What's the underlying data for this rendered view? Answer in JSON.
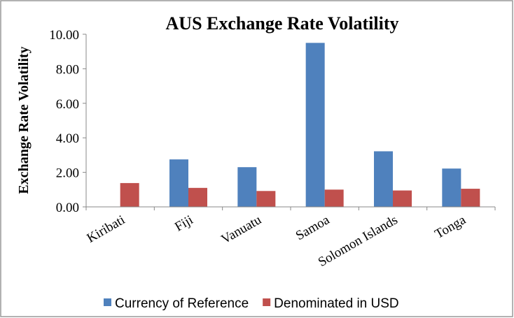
{
  "chart_data": {
    "type": "bar",
    "title": "AUS Exchange Rate Volatility",
    "y_label": "Exchange Rate Volatility",
    "categories": [
      "Kiribati",
      "Fiji",
      "Vanuatu",
      "Samoa",
      "Solomon Islands",
      "Tonga"
    ],
    "series": [
      {
        "name": "Currency of Reference",
        "color": "#4f81bd",
        "values": [
          null,
          2.75,
          2.3,
          9.5,
          3.22,
          2.22
        ]
      },
      {
        "name": "Denominated in USD",
        "color": "#c0504d",
        "values": [
          1.38,
          1.1,
          0.92,
          1.0,
          0.95,
          1.05
        ]
      }
    ],
    "ylim": [
      0,
      10
    ],
    "yticks": [
      {
        "value": 0,
        "label": "0.00"
      },
      {
        "value": 2,
        "label": "2.00"
      },
      {
        "value": 4,
        "label": "4.00"
      },
      {
        "value": 6,
        "label": "6.00"
      },
      {
        "value": 8,
        "label": "8.00"
      },
      {
        "value": 10,
        "label": "10.00"
      }
    ],
    "legend": "bottom"
  }
}
